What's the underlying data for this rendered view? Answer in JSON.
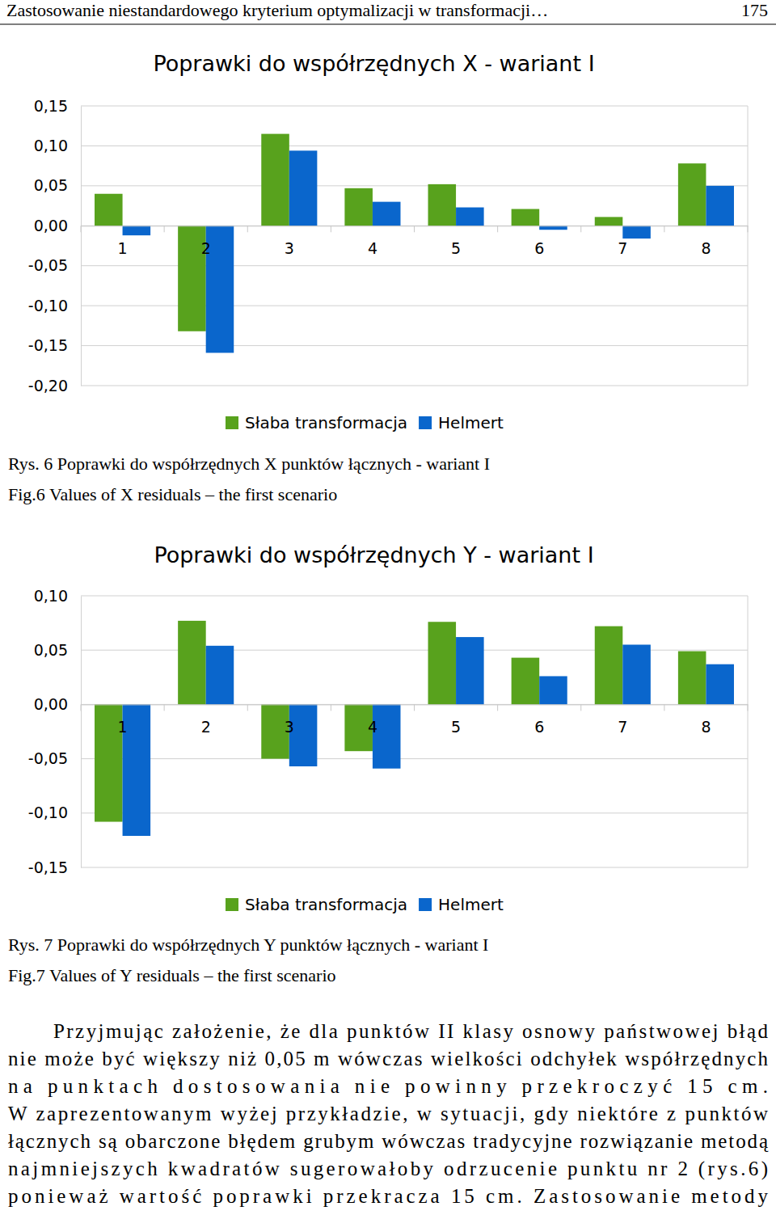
{
  "header": {
    "title": "Zastosowanie niestandardowego kryterium optymalizacji w transformacji…",
    "page": "175"
  },
  "chart_data": [
    {
      "type": "bar",
      "title": "Poprawki do współrzędnych X - wariant I",
      "categories": [
        "1",
        "2",
        "3",
        "4",
        "5",
        "6",
        "7",
        "8"
      ],
      "series": [
        {
          "name": "Słaba transformacja",
          "color": "#58a21d",
          "values": [
            0.04,
            -0.132,
            0.115,
            0.047,
            0.052,
            0.021,
            0.011,
            0.078
          ]
        },
        {
          "name": "Helmert",
          "color": "#0a66cc",
          "values": [
            -0.012,
            -0.159,
            0.094,
            0.03,
            0.023,
            -0.005,
            -0.016,
            0.05
          ]
        }
      ],
      "ylim": [
        -0.2,
        0.15
      ],
      "yticks": [
        {
          "value": -0.2,
          "label": "-0,20"
        },
        {
          "value": -0.15,
          "label": "-0,15"
        },
        {
          "value": -0.1,
          "label": "-0,10"
        },
        {
          "value": -0.05,
          "label": "-0,05"
        },
        {
          "value": 0.0,
          "label": "0,00"
        },
        {
          "value": 0.05,
          "label": "0,05"
        },
        {
          "value": 0.1,
          "label": "0,10"
        },
        {
          "value": 0.15,
          "label": "0,15"
        }
      ],
      "grid": true,
      "legend": "bottom"
    },
    {
      "type": "bar",
      "title": "Poprawki do współrzędnych Y - wariant I",
      "categories": [
        "1",
        "2",
        "3",
        "4",
        "5",
        "6",
        "7",
        "8"
      ],
      "series": [
        {
          "name": "Słaba transformacja",
          "color": "#58a21d",
          "values": [
            -0.108,
            0.077,
            -0.05,
            -0.043,
            0.076,
            0.043,
            0.072,
            0.049
          ]
        },
        {
          "name": "Helmert",
          "color": "#0a66cc",
          "values": [
            -0.121,
            0.054,
            -0.057,
            -0.059,
            0.062,
            0.026,
            0.055,
            0.037
          ]
        }
      ],
      "ylim": [
        -0.15,
        0.1
      ],
      "yticks": [
        {
          "value": -0.15,
          "label": "-0,15"
        },
        {
          "value": -0.1,
          "label": "-0,10"
        },
        {
          "value": -0.05,
          "label": "-0,05"
        },
        {
          "value": 0.0,
          "label": "0,00"
        },
        {
          "value": 0.05,
          "label": "0,05"
        },
        {
          "value": 0.1,
          "label": "0,10"
        }
      ],
      "grid": true,
      "legend": "bottom"
    }
  ],
  "captions": [
    {
      "pl": "Rys. 6 Poprawki do współrzędnych X punktów łącznych -  wariant I",
      "en": "Fig.6 Values of X residuals – the first scenario"
    },
    {
      "pl": "Rys. 7 Poprawki do współrzędnych Y punktów łącznych -  wariant I",
      "en": "Fig.7 Values of Y residuals – the first scenario"
    }
  ],
  "paragraph": [
    "Przyjmując założenie, że dla punktów II klasy osnowy państwowej błąd",
    "nie może być większy niż 0,05 m wówczas wielkości odchyłek współrzędnych",
    "na punktach dostosowania nie powinny przekroczyć 15 cm.",
    "W zaprezentowanym wyżej przykładzie, w sytuacji, gdy niektóre z punktów",
    "łącznych są obarczone błędem grubym wówczas tradycyjne rozwiązanie metodą",
    "najmniejszych kwadratów sugerowałoby odrzucenie punktu nr 2 (rys.6)",
    "ponieważ wartość poprawki przekracza 15 cm. Zastosowanie metody"
  ]
}
